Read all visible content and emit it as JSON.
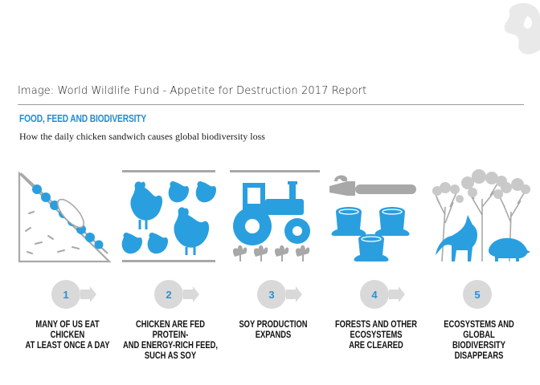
{
  "credit": "Image: World Wildlife Fund - Appetite for Destruction 2017 Report",
  "heading": "FOOD, FEED AND BIODIVERSITY",
  "subheading": "How the daily chicken sandwich causes global biodiversity loss",
  "colors": {
    "accent": "#2a9fdf",
    "circle": "#d9d9d9",
    "text": "#111111",
    "tree": "#9a9a9a"
  },
  "steps": [
    {
      "number": "1",
      "icon": "sandwich-icon",
      "lines": [
        "MANY OF US EAT CHICKEN",
        "AT LEAST ONCE A DAY"
      ]
    },
    {
      "number": "2",
      "icon": "chickens-icon",
      "lines": [
        "CHICKEN ARE FED PROTEIN-",
        "AND ENERGY-RICH FEED,",
        "SUCH AS SOY"
      ]
    },
    {
      "number": "3",
      "icon": "tractor-icon",
      "lines": [
        "SOY PRODUCTION",
        "EXPANDS"
      ]
    },
    {
      "number": "4",
      "icon": "chainsaw-stumps-icon",
      "lines": [
        "FORESTS AND OTHER",
        "ECOSYSTEMS",
        "ARE CLEARED"
      ]
    },
    {
      "number": "5",
      "icon": "wildlife-icon",
      "lines": [
        "ECOSYSTEMS AND GLOBAL",
        "BIODIVERSITY DISAPPEARS"
      ]
    }
  ]
}
